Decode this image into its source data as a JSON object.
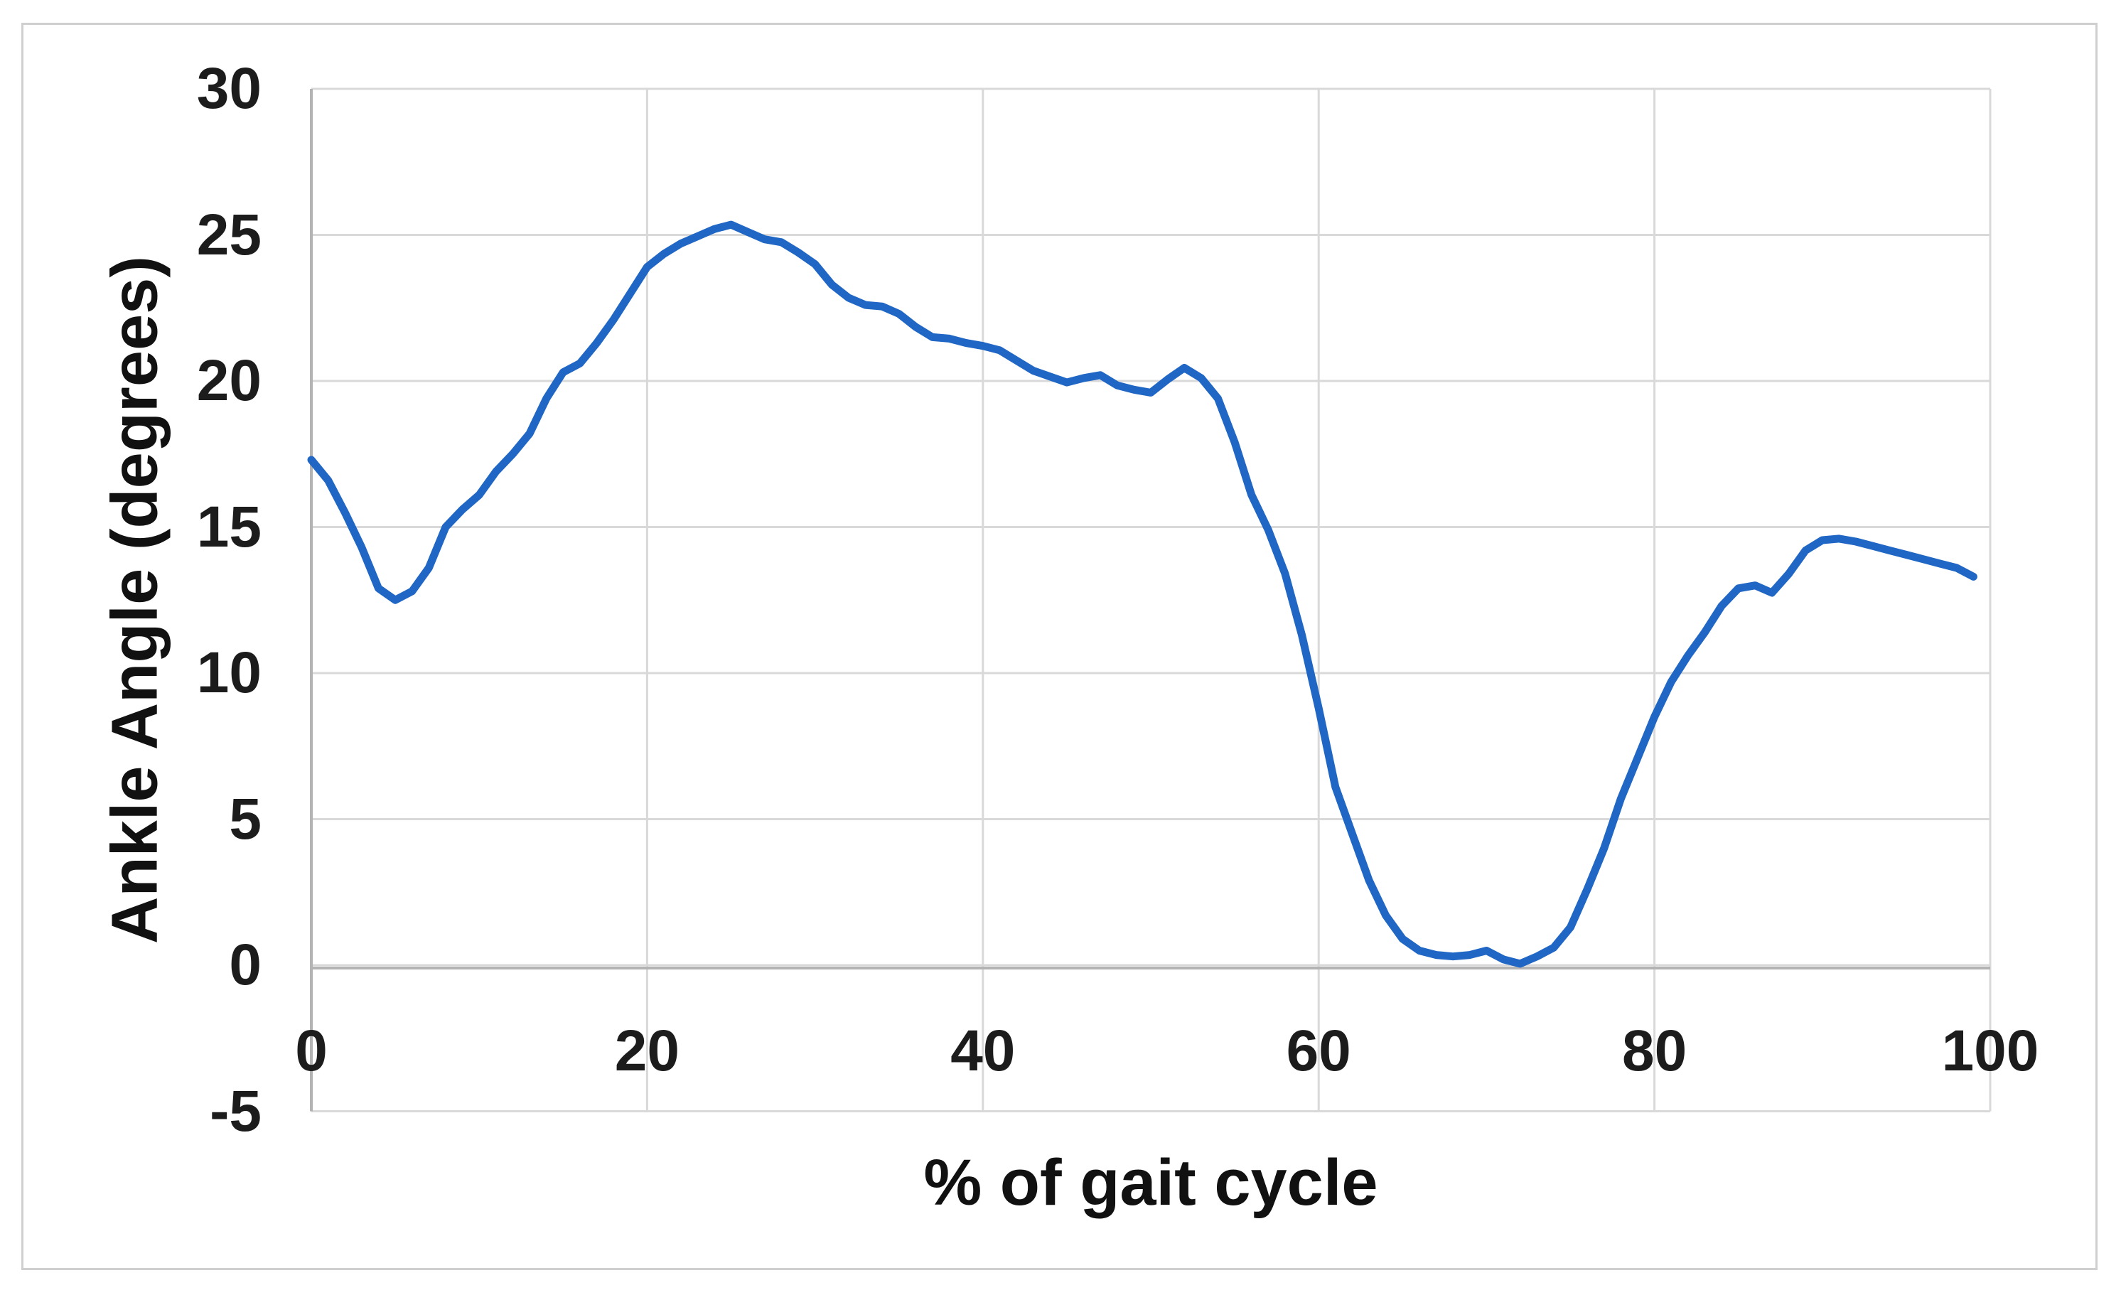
{
  "figure": {
    "background_color": "#ffffff",
    "border_color": "#cfcfcf"
  },
  "style": {
    "gridline_color": "#d9d9d9",
    "axis_line_color": "#b3b3b3",
    "tick_label_color": "#1c1c1c",
    "axis_title_color": "#111111",
    "series_line_color": "#2066C4",
    "series_line_width": 11
  },
  "chart_data": {
    "type": "line",
    "title": "",
    "xlabel": "% of gait cycle",
    "ylabel": "Ankle Angle (degrees)",
    "xlim": [
      0,
      100
    ],
    "ylim": [
      -5,
      30
    ],
    "x_ticks": [
      0,
      20,
      40,
      60,
      80,
      100
    ],
    "y_ticks": [
      -5,
      0,
      5,
      10,
      15,
      20,
      25,
      30
    ],
    "grid": true,
    "legend_position": "none",
    "series": [
      {
        "name": "Ankle Angle",
        "color": "#2066C4",
        "x_start": 0,
        "x_step": 1,
        "values": [
          17.3,
          16.6,
          15.5,
          14.3,
          12.9,
          12.5,
          12.8,
          13.6,
          15.0,
          15.6,
          16.1,
          16.9,
          17.5,
          18.2,
          19.4,
          20.3,
          20.6,
          21.3,
          22.1,
          23.0,
          23.9,
          24.35,
          24.7,
          24.95,
          25.2,
          25.35,
          25.1,
          24.85,
          24.75,
          24.4,
          24.0,
          23.3,
          22.85,
          22.6,
          22.55,
          22.3,
          21.85,
          21.5,
          21.45,
          21.3,
          21.2,
          21.05,
          20.7,
          20.35,
          20.15,
          19.95,
          20.1,
          20.2,
          19.85,
          19.7,
          19.6,
          20.05,
          20.45,
          20.1,
          19.4,
          17.9,
          16.1,
          14.9,
          13.4,
          11.3,
          8.8,
          6.1,
          4.5,
          2.9,
          1.7,
          0.9,
          0.5,
          0.35,
          0.3,
          0.35,
          0.5,
          0.2,
          0.05,
          0.3,
          0.6,
          1.3,
          2.6,
          4.0,
          5.7,
          7.1,
          8.5,
          9.7,
          10.6,
          11.4,
          12.3,
          12.9,
          13.0,
          12.75,
          13.4,
          14.2,
          14.55,
          14.6,
          14.5,
          14.35,
          14.2,
          14.05,
          13.9,
          13.75,
          13.6,
          13.3
        ]
      }
    ]
  }
}
